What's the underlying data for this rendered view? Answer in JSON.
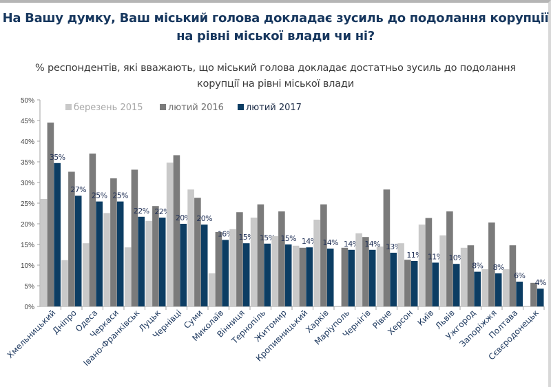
{
  "chart_data": {
    "type": "bar",
    "title": "На Вашу думку, Ваш міський голова докладає зусиль до подолання корупції на рівні міської влади чи ні?",
    "subtitle": "% респондентів, які вважають, що міський голова докладає достатньо зусиль до подолання корупції на рівні міської влади",
    "categories": [
      "Хмельницький",
      "Дніпро",
      "Одеса",
      "Черкаси",
      "Івано-Франківськ",
      "Луцьк",
      "Чернівці",
      "Суми",
      "Миколаїв",
      "Вінниця",
      "Тернопіль",
      "Житомир",
      "Кропивницький",
      "Харків",
      "Маріуполь",
      "Чернігів",
      "Рівне",
      "Херсон",
      "Київ",
      "Львів",
      "Ужгород",
      "Запоріжжя",
      "Полтава",
      "Сєвєродонецьк"
    ],
    "series": [
      {
        "name": "березень 2015",
        "color": "#c9c9c9",
        "values": [
          26,
          11.2,
          15.3,
          22.6,
          14.3,
          20.7,
          34.8,
          28.3,
          8,
          18.7,
          21.5,
          17,
          14.7,
          21,
          null,
          17.7,
          14.5,
          15.3,
          19.8,
          17.2,
          14.2,
          9,
          9,
          null
        ]
      },
      {
        "name": "лютий 2016",
        "color": "#7b7b7b",
        "values": [
          44.5,
          32.6,
          37,
          31,
          33.1,
          24.3,
          36.6,
          26.3,
          18,
          22.8,
          24.7,
          23,
          14.2,
          24.7,
          14.2,
          16.8,
          28.3,
          11.3,
          21.4,
          23,
          14.8,
          20.3,
          14.8,
          5.7
        ]
      },
      {
        "name": "лютий 2017",
        "color": "#0c3d63",
        "values": [
          34.7,
          26.8,
          25.4,
          25.4,
          21.7,
          21.5,
          20,
          19.8,
          16.1,
          15.3,
          15.2,
          15,
          14.3,
          14,
          13.7,
          13.7,
          13,
          11,
          10.6,
          10.3,
          8.4,
          8,
          6,
          4.3
        ],
        "data_labels": [
          "35%",
          "27%",
          "25%",
          "25%",
          "22%",
          "22%",
          "20%",
          "20%",
          "16%",
          "15%",
          "15%",
          "15%",
          "14%",
          "14%",
          "14%",
          "14%",
          "13%",
          "11%",
          "11%",
          "10%",
          "8%",
          "8%",
          "6%",
          "4%"
        ]
      }
    ],
    "ylim": [
      0,
      50
    ],
    "yticks": [
      "0%",
      "5%",
      "10%",
      "15%",
      "20%",
      "25%",
      "30%",
      "35%",
      "40%",
      "45%",
      "50%"
    ],
    "xlabel": "",
    "ylabel": "",
    "grid": false,
    "legend": "top"
  }
}
